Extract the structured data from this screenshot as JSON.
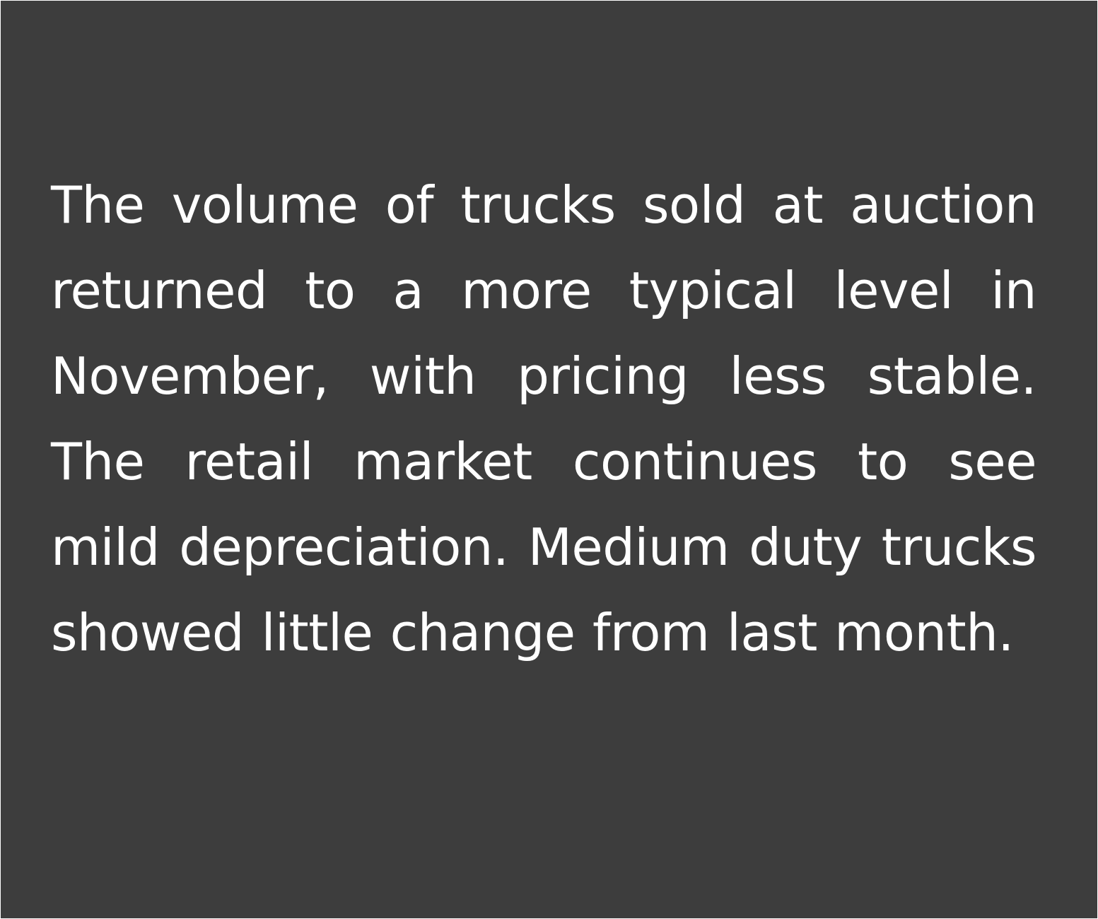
{
  "paragraph": {
    "text": "The volume of trucks sold at auction returned to a more typical level in November, with pricing less stable. The retail market continues to see mild depreciation. Medium duty trucks showed little change from last month."
  },
  "colors": {
    "background": "#3d3d3d",
    "text": "#ffffff"
  }
}
